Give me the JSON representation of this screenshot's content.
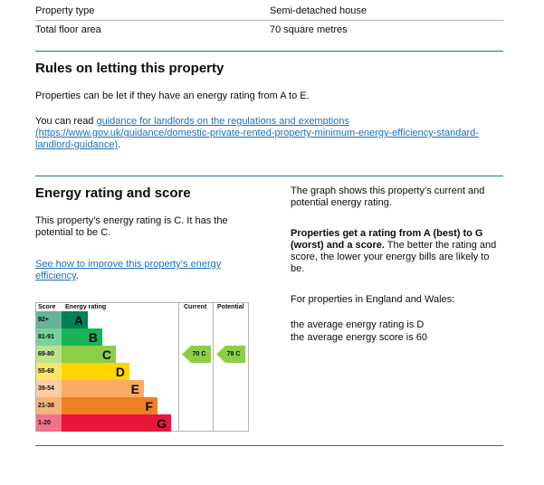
{
  "summary": [
    {
      "label": "Property type",
      "value": "Semi-detached house"
    },
    {
      "label": "Total floor area",
      "value": "70 square metres"
    }
  ],
  "rules": {
    "title": "Rules on letting this property",
    "p1": "Properties can be let if they have an energy rating from A to E.",
    "p2_prefix": "You can read ",
    "link_text": "guidance for landlords on the regulations and exemptions",
    "link_url_text": "(https://www.gov.uk/guidance/domestic-private-rented-property-minimum-energy-efficiency-standard-landlord-guidance)",
    "p2_suffix": "."
  },
  "energy": {
    "title": "Energy rating and score",
    "p1": "This property’s energy rating is C. It has the potential to be C.",
    "link": "See how to improve this property’s energy efficiency",
    "p2": ".",
    "right_p1": "The graph shows this property’s current and potential energy rating.",
    "right_bold": "Properties get a rating from A (best) to G (worst) and a score.",
    "right_rest": " The better the rating and score, the lower your energy bills are likely to be.",
    "right_p3": "For properties in England and Wales:",
    "avg_rating": "the average energy rating is D",
    "avg_score": "the average energy score is 60"
  },
  "chart_data": {
    "type": "table",
    "headers": {
      "score": "Score",
      "rating": "Energy rating",
      "current": "Current",
      "potential": "Potential"
    },
    "bands": [
      {
        "letter": "A",
        "range": "92+",
        "color": "#008054",
        "light": "#66b398"
      },
      {
        "letter": "B",
        "range": "81-91",
        "color": "#19b459",
        "light": "#75d29b"
      },
      {
        "letter": "C",
        "range": "69-80",
        "color": "#8dce46",
        "light": "#bbe290"
      },
      {
        "letter": "D",
        "range": "55-68",
        "color": "#ffd500",
        "light": "#ffe566"
      },
      {
        "letter": "E",
        "range": "39-54",
        "color": "#fcaa65",
        "light": "#fdcca3"
      },
      {
        "letter": "F",
        "range": "21-38",
        "color": "#ef8023",
        "light": "#f5b37b"
      },
      {
        "letter": "G",
        "range": "1-20",
        "color": "#e9153b",
        "light": "#f27389"
      }
    ],
    "current": {
      "score": 70,
      "band": "C",
      "label": "70 C"
    },
    "potential": {
      "score": 78,
      "band": "C",
      "label": "78 C"
    }
  }
}
